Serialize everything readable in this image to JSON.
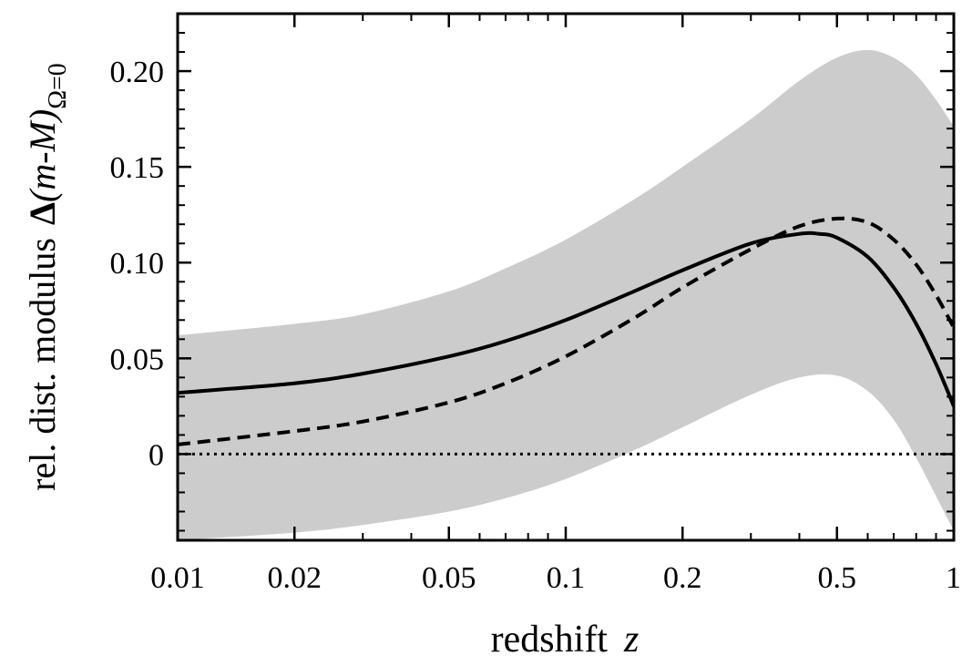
{
  "chart_data": {
    "type": "line",
    "xscale": "log",
    "xlim": [
      0.01,
      1
    ],
    "ylim": [
      -0.045,
      0.23
    ],
    "xlabel": {
      "text": "redshift",
      "var": "z"
    },
    "ylabel": {
      "text": "rel. dist. modulus",
      "delta": "Δ",
      "expr": "(m-M)",
      "subscript": "Ω=0"
    },
    "xticks": [
      {
        "value": 0.01,
        "label": "0.01"
      },
      {
        "value": 0.02,
        "label": "0.02"
      },
      {
        "value": 0.05,
        "label": "0.05"
      },
      {
        "value": 0.1,
        "label": "0.1"
      },
      {
        "value": 0.2,
        "label": "0.2"
      },
      {
        "value": 0.5,
        "label": "0.5"
      },
      {
        "value": 1,
        "label": "1"
      }
    ],
    "yticks": [
      {
        "value": 0,
        "label": "0"
      },
      {
        "value": 0.05,
        "label": "0.05"
      },
      {
        "value": 0.1,
        "label": "0.10"
      },
      {
        "value": 0.15,
        "label": "0.15"
      },
      {
        "value": 0.2,
        "label": "0.20"
      }
    ],
    "band": {
      "color": "#cccccc",
      "x": [
        0.01,
        0.02,
        0.03,
        0.05,
        0.07,
        0.1,
        0.15,
        0.2,
        0.3,
        0.4,
        0.5,
        0.6,
        0.7,
        0.8,
        0.9,
        1.0
      ],
      "upper": [
        0.062,
        0.068,
        0.073,
        0.085,
        0.097,
        0.112,
        0.133,
        0.15,
        0.175,
        0.195,
        0.207,
        0.211,
        0.207,
        0.198,
        0.185,
        0.171
      ],
      "lower": [
        -0.045,
        -0.041,
        -0.037,
        -0.03,
        -0.023,
        -0.013,
        0.002,
        0.014,
        0.031,
        0.04,
        0.041,
        0.033,
        0.018,
        -0.002,
        -0.022,
        -0.04
      ]
    },
    "series": [
      {
        "style": "solid",
        "color": "#000000",
        "x": [
          0.01,
          0.02,
          0.03,
          0.05,
          0.07,
          0.1,
          0.15,
          0.2,
          0.3,
          0.4,
          0.45,
          0.5,
          0.6,
          0.7,
          0.8,
          0.9,
          1.0
        ],
        "values": [
          0.032,
          0.037,
          0.042,
          0.051,
          0.059,
          0.07,
          0.085,
          0.096,
          0.11,
          0.115,
          0.115,
          0.113,
          0.103,
          0.087,
          0.068,
          0.047,
          0.025
        ]
      },
      {
        "style": "dashed",
        "color": "#000000",
        "x": [
          0.01,
          0.02,
          0.03,
          0.05,
          0.07,
          0.1,
          0.15,
          0.2,
          0.3,
          0.4,
          0.5,
          0.6,
          0.7,
          0.8,
          0.9,
          1.0
        ],
        "values": [
          0.005,
          0.012,
          0.017,
          0.027,
          0.037,
          0.051,
          0.071,
          0.087,
          0.107,
          0.119,
          0.123,
          0.121,
          0.112,
          0.099,
          0.083,
          0.066
        ]
      },
      {
        "style": "dotted",
        "color": "#000000",
        "x": [
          0.01,
          1.0
        ],
        "values": [
          0,
          0
        ]
      }
    ]
  }
}
